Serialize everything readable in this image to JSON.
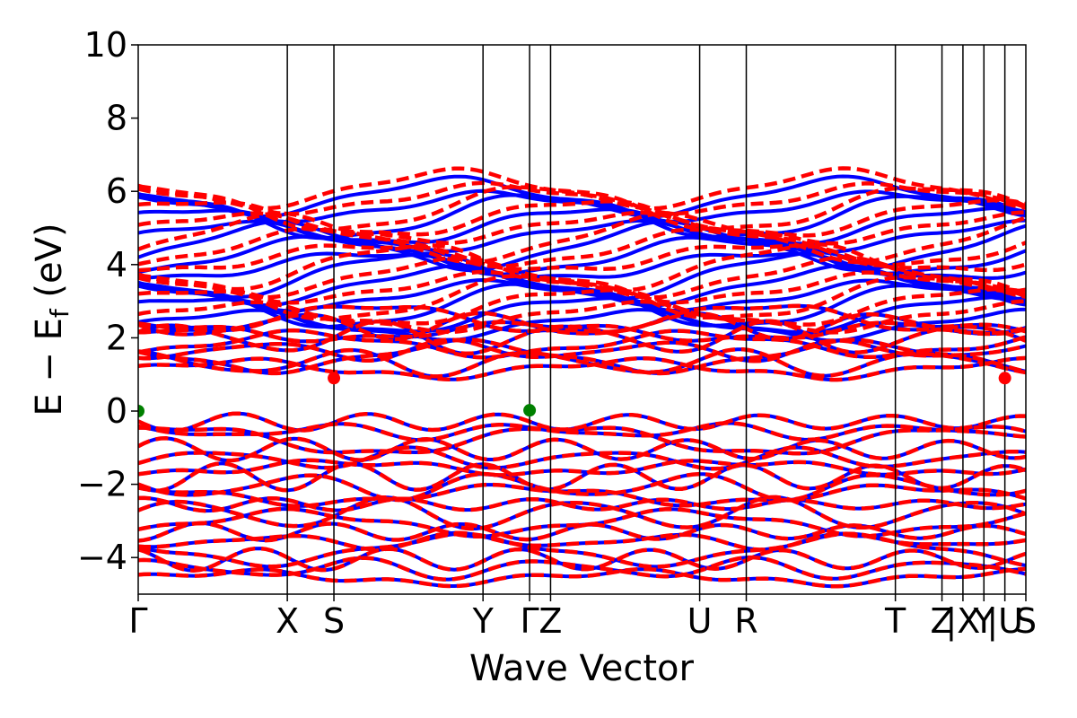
{
  "chart_data": {
    "type": "line",
    "xlabel": "Wave Vector",
    "ylabel": "E − E_f (eV)",
    "ylabel_parts": {
      "main": "E − E",
      "sub": "f",
      "unit": " (eV)"
    },
    "ylim": [
      -5,
      10
    ],
    "yticks": [
      -4,
      -2,
      0,
      2,
      4,
      6,
      8,
      10
    ],
    "ytick_labels": [
      "−4",
      "−2",
      "0",
      "2",
      "4",
      "6",
      "8",
      "10"
    ],
    "grid": false,
    "legend": "none",
    "kpath": [
      {
        "label": "Γ",
        "pos": 0.0
      },
      {
        "label": "X",
        "pos": 3.2
      },
      {
        "label": "S",
        "pos": 4.2
      },
      {
        "label": "Y",
        "pos": 7.4
      },
      {
        "label": "Γ",
        "pos": 8.4
      },
      {
        "label": "Z",
        "pos": 8.85
      },
      {
        "label": "U",
        "pos": 12.05
      },
      {
        "label": "R",
        "pos": 13.05
      },
      {
        "label": "T",
        "pos": 16.25
      },
      {
        "label": "Z",
        "pos": 17.25
      },
      {
        "label": "|X",
        "pos": 17.7
      },
      {
        "label": "Y",
        "pos": 18.15
      },
      {
        "label": "|U",
        "pos": 18.6
      },
      {
        "label": "S",
        "pos": 19.05
      }
    ],
    "series": [
      {
        "style": "solid",
        "color": "#0000ff",
        "width": 4
      },
      {
        "style": "dashed",
        "color": "#ff0000",
        "width": 4.5
      }
    ],
    "markers": [
      {
        "x": 0.0,
        "y": 0.0,
        "color": "#008000"
      },
      {
        "x": 8.4,
        "y": 0.02,
        "color": "#008000"
      },
      {
        "x": 4.2,
        "y": 0.9,
        "color": "#ff0000"
      },
      {
        "x": 18.6,
        "y": 0.9,
        "color": "#ff0000"
      }
    ]
  }
}
